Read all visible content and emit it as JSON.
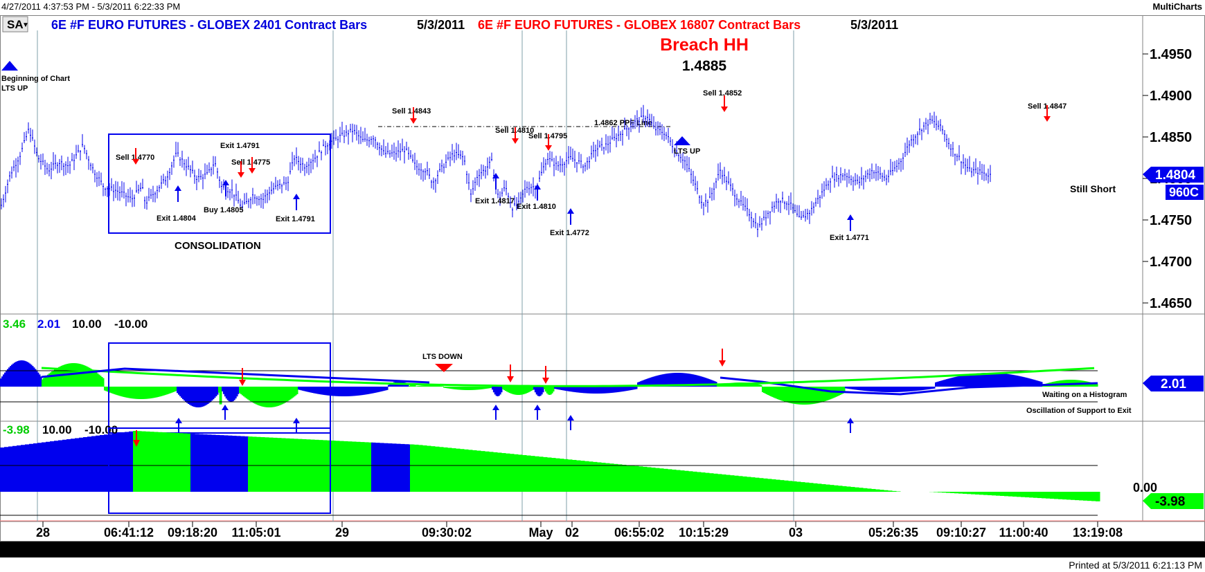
{
  "window": {
    "range": "4/27/2011 4:37:53 PM - 5/3/2011 6:22:33 PM",
    "brand": "MultiCharts",
    "printed": "Printed at 5/3/2011 6:21:13 PM"
  },
  "header": {
    "symbol_button": "SA",
    "series1": {
      "text": "6E #F  EURO FUTURES - GLOBEX  2401 Contract Bars",
      "date": "5/3/2011",
      "color": "#0000dd"
    },
    "series2": {
      "text": "6E #F  EURO FUTURES - GLOBEX  16807 Contract Bars",
      "date": "5/3/2011",
      "color": "#ff0000"
    }
  },
  "annotations": {
    "breach_title": "Breach HH",
    "breach_value": "1.4885",
    "beginning": "Beginning of Chart",
    "lts_up_left": "LTS UP",
    "lts_up_mid": "LTS UP",
    "lts_down": "LTS DOWN",
    "consolidation": "CONSOLIDATION",
    "still_short": "Still Short",
    "ppf_line": "1.4862 PPF Line",
    "waiting": "Waiting on a Histogram",
    "oscillation": "Oscillation of Support to Exit",
    "trades": [
      {
        "id": "sell-1",
        "text": "Sell 1.4770"
      },
      {
        "id": "exit-1",
        "text": "Exit 1.4804"
      },
      {
        "id": "buy-1",
        "text": "Buy 1.4805"
      },
      {
        "id": "exit-2",
        "text": "Exit 1.4791"
      },
      {
        "id": "sell-2",
        "text": "Sell 1.4775"
      },
      {
        "id": "exit-3",
        "text": "Exit 1.4791"
      },
      {
        "id": "sell-3",
        "text": "Sell 1.4843"
      },
      {
        "id": "sell-4",
        "text": "Sell 1.4810"
      },
      {
        "id": "sell-5",
        "text": "Sell 1.4795"
      },
      {
        "id": "exit-4",
        "text": "Exit 1.4817"
      },
      {
        "id": "exit-5",
        "text": "Exit 1.4810"
      },
      {
        "id": "exit-6",
        "text": "Exit 1.4772"
      },
      {
        "id": "sell-6",
        "text": "Sell 1.4852"
      },
      {
        "id": "sell-7",
        "text": "Sell 1.4847"
      },
      {
        "id": "exit-7",
        "text": "Exit 1.4771"
      }
    ]
  },
  "indicator1": {
    "values": [
      "3.46",
      "2.01",
      "10.00",
      "-10.00"
    ],
    "current": "2.01"
  },
  "indicator2": {
    "values": [
      "-3.98",
      "10.00",
      "-10.00"
    ],
    "current": "-3.98",
    "zero_label": "0.00"
  },
  "price_axis": {
    "current": "1.4804",
    "volume": "960C"
  },
  "colors": {
    "blue": "#0000ee",
    "green": "#00ff00",
    "red": "#ff0000",
    "grid": "#7f9fa8"
  },
  "chart_data": {
    "type": "line",
    "title": "6E #F EURO FUTURES - GLOBEX 2401 Contract Bars",
    "y_ticks": [
      "1.4950",
      "1.4900",
      "1.4850",
      "1.4800",
      "1.4750",
      "1.4700",
      "1.4650"
    ],
    "ylim": [
      1.4635,
      1.4985
    ],
    "x_ticks": [
      "28",
      "06:41:12",
      "09:18:20",
      "11:05:01",
      "29",
      "09:30:02",
      "May",
      "02",
      "06:55:02",
      "10:15:29",
      "03",
      "05:26:35",
      "09:10:27",
      "11:00:40",
      "13:19:08"
    ],
    "price_series": [
      [
        0,
        1.4762
      ],
      [
        15,
        1.4805
      ],
      [
        30,
        1.483
      ],
      [
        42,
        1.486
      ],
      [
        55,
        1.4825
      ],
      [
        70,
        1.481
      ],
      [
        85,
        1.482
      ],
      [
        100,
        1.4815
      ],
      [
        120,
        1.484
      ],
      [
        135,
        1.481
      ],
      [
        150,
        1.479
      ],
      [
        170,
        1.4785
      ],
      [
        190,
        1.4775
      ],
      [
        205,
        1.479
      ],
      [
        210,
        1.477
      ],
      [
        225,
        1.4785
      ],
      [
        240,
        1.48
      ],
      [
        255,
        1.483
      ],
      [
        270,
        1.4815
      ],
      [
        285,
        1.48
      ],
      [
        300,
        1.4805
      ],
      [
        310,
        1.482
      ],
      [
        320,
        1.479
      ],
      [
        335,
        1.4785
      ],
      [
        350,
        1.4765
      ],
      [
        365,
        1.478
      ],
      [
        380,
        1.4775
      ],
      [
        390,
        1.4785
      ],
      [
        400,
        1.479
      ],
      [
        415,
        1.4795
      ],
      [
        425,
        1.4825
      ],
      [
        440,
        1.4815
      ],
      [
        455,
        1.4825
      ],
      [
        470,
        1.484
      ],
      [
        490,
        1.485
      ],
      [
        510,
        1.4858
      ],
      [
        525,
        1.4845
      ],
      [
        540,
        1.485
      ],
      [
        555,
        1.483
      ],
      [
        570,
        1.483
      ],
      [
        585,
        1.4835
      ],
      [
        600,
        1.4815
      ],
      [
        615,
        1.481
      ],
      [
        625,
        1.4795
      ],
      [
        640,
        1.4815
      ],
      [
        655,
        1.483
      ],
      [
        670,
        1.4825
      ],
      [
        680,
        1.478
      ],
      [
        690,
        1.4805
      ],
      [
        700,
        1.481
      ],
      [
        710,
        1.482
      ],
      [
        720,
        1.4775
      ],
      [
        730,
        1.479
      ],
      [
        740,
        1.4765
      ],
      [
        750,
        1.477
      ],
      [
        760,
        1.479
      ],
      [
        775,
        1.479
      ],
      [
        790,
        1.4825
      ],
      [
        805,
        1.4815
      ],
      [
        825,
        1.4825
      ],
      [
        845,
        1.4815
      ],
      [
        860,
        1.4835
      ],
      [
        875,
        1.484
      ],
      [
        890,
        1.485
      ],
      [
        905,
        1.486
      ],
      [
        920,
        1.487
      ],
      [
        935,
        1.4875
      ],
      [
        945,
        1.486
      ],
      [
        960,
        1.4855
      ],
      [
        975,
        1.4835
      ],
      [
        990,
        1.482
      ],
      [
        1005,
        1.479
      ],
      [
        1015,
        1.477
      ],
      [
        1025,
        1.4775
      ],
      [
        1040,
        1.481
      ],
      [
        1055,
        1.479
      ],
      [
        1070,
        1.477
      ],
      [
        1085,
        1.4755
      ],
      [
        1095,
        1.474
      ],
      [
        1110,
        1.476
      ],
      [
        1125,
        1.4775
      ],
      [
        1140,
        1.477
      ],
      [
        1155,
        1.475
      ],
      [
        1170,
        1.476
      ],
      [
        1185,
        1.478
      ],
      [
        1200,
        1.48
      ],
      [
        1220,
        1.4805
      ],
      [
        1240,
        1.4795
      ],
      [
        1260,
        1.481
      ],
      [
        1280,
        1.48
      ],
      [
        1300,
        1.482
      ],
      [
        1315,
        1.4845
      ],
      [
        1330,
        1.486
      ],
      [
        1345,
        1.487
      ],
      [
        1360,
        1.486
      ],
      [
        1375,
        1.4835
      ],
      [
        1385,
        1.4825
      ],
      [
        1400,
        1.481
      ],
      [
        1415,
        1.4808
      ],
      [
        1430,
        1.4804
      ]
    ]
  }
}
